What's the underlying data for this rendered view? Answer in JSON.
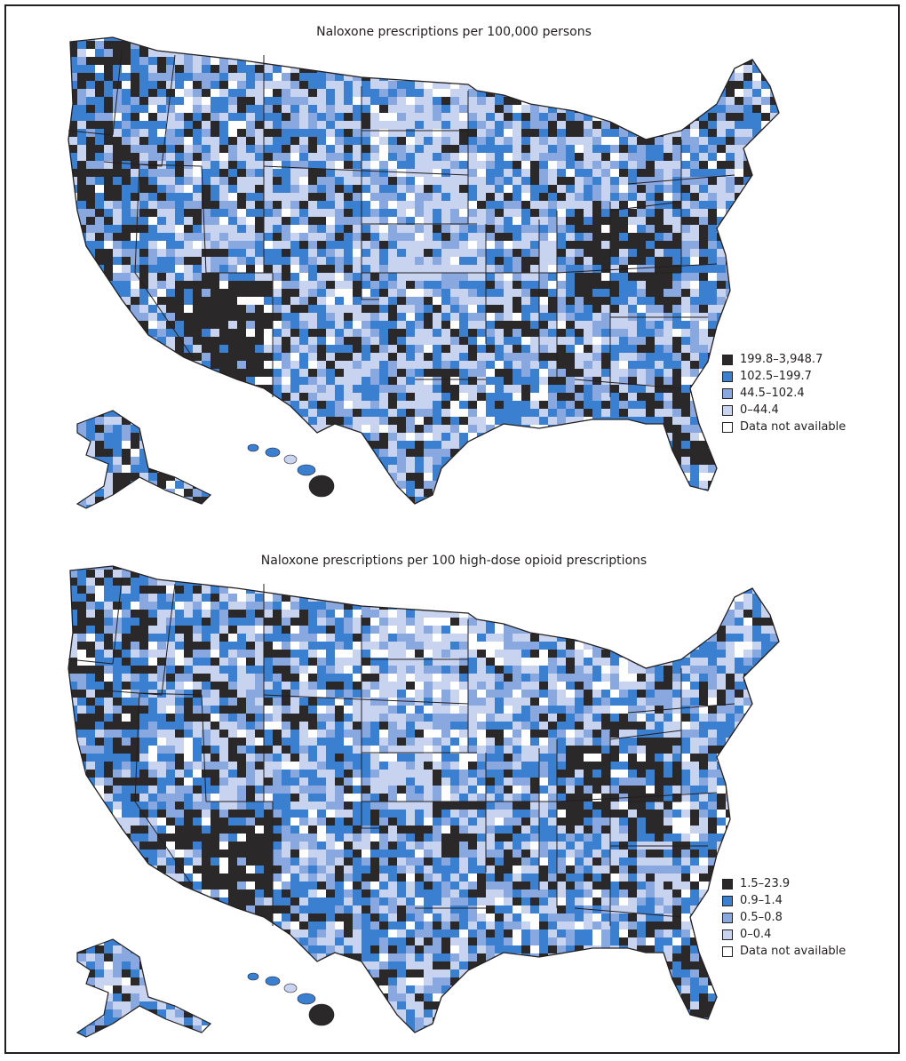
{
  "figure": {
    "panels": [
      {
        "title": "Naloxone prescriptions per 100,000 persons",
        "legend": [
          {
            "label": "199.8–3,948.7",
            "color": "#2b2829"
          },
          {
            "label": "102.5–199.7",
            "color": "#3a7fd0"
          },
          {
            "label": "44.5–102.4",
            "color": "#8aa8e0"
          },
          {
            "label": "0–44.4",
            "color": "#c8d3ef"
          },
          {
            "label": "Data not available",
            "color": "#ffffff"
          }
        ]
      },
      {
        "title": "Naloxone prescriptions per 100 high-dose opioid prescriptions",
        "legend": [
          {
            "label": "1.5–23.9",
            "color": "#2b2829"
          },
          {
            "label": "0.9–1.4",
            "color": "#3a7fd0"
          },
          {
            "label": "0.5–0.8",
            "color": "#8aa8e0"
          },
          {
            "label": "0–0.4",
            "color": "#c8d3ef"
          },
          {
            "label": "Data not available",
            "color": "#ffffff"
          }
        ]
      }
    ]
  },
  "colors": {
    "dark": "#2b2829",
    "blue": "#3a7fd0",
    "medium": "#8aa8e0",
    "light": "#c8d3ef",
    "none": "#ffffff",
    "border": "#231f20"
  }
}
